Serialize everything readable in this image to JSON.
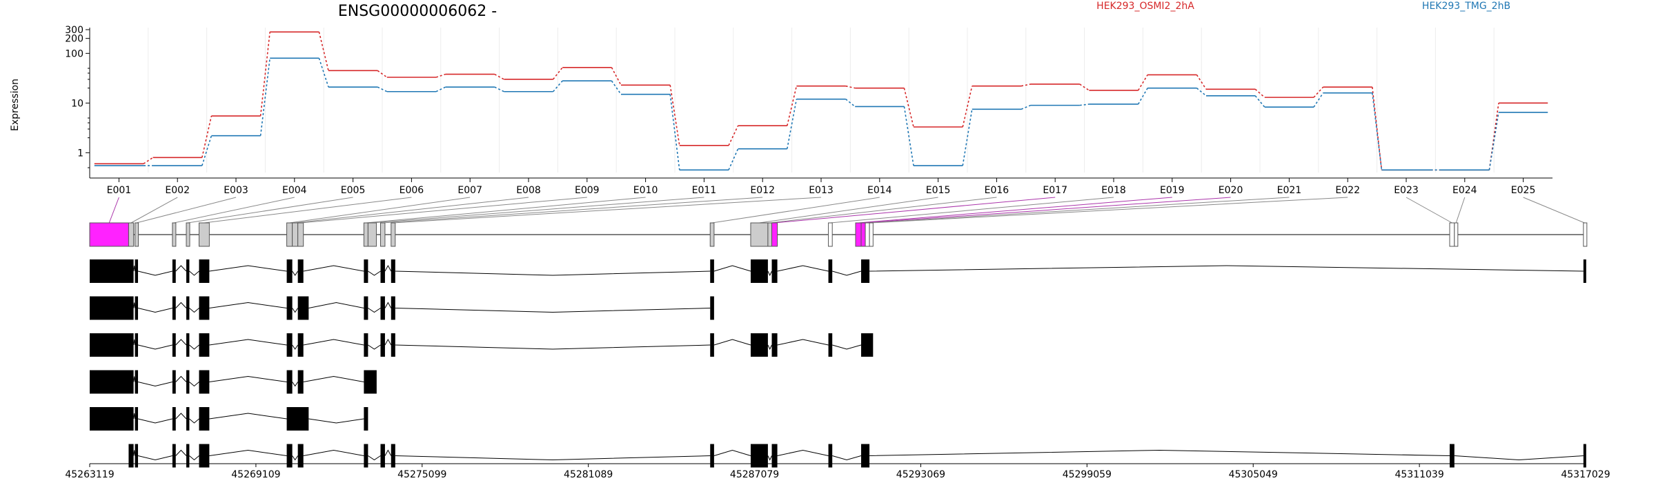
{
  "title": "ENSG00000006062 -",
  "ylabel": "Expression",
  "legend": [
    {
      "name": "HEK293_OSMI2_2hA",
      "color": "#d62728"
    },
    {
      "name": "HEK293_TMG_2hB",
      "color": "#1f77b4"
    }
  ],
  "chart_data": {
    "type": "line",
    "title": "ENSG00000006062 -",
    "ylabel": "Expression",
    "yscale": "log",
    "ylim": [
      0.4,
      330
    ],
    "yticks": [
      1,
      10,
      100,
      200,
      300
    ],
    "ytick_labels": [
      "1",
      "10",
      "100",
      "200",
      "300"
    ],
    "grid": "vertical",
    "categories": [
      "E001",
      "E002",
      "E003",
      "E004",
      "E005",
      "E006",
      "E007",
      "E008",
      "E009",
      "E010",
      "E011",
      "E012",
      "E013",
      "E014",
      "E015",
      "E016",
      "E017",
      "E018",
      "E019",
      "E020",
      "E021",
      "E022",
      "E023",
      "E024",
      "E025"
    ],
    "series": [
      {
        "name": "HEK293_OSMI2_2hA",
        "color": "#d62728",
        "values": [
          0.6,
          0.8,
          5.5,
          270,
          45,
          33,
          38,
          30,
          52,
          23,
          1.4,
          3.5,
          22,
          20,
          3.3,
          22,
          24,
          18,
          37,
          19,
          13,
          21,
          0.45,
          0.45,
          10
        ]
      },
      {
        "name": "HEK293_TMG_2hB",
        "color": "#1f77b4",
        "values": [
          0.55,
          0.55,
          2.2,
          80,
          21,
          17,
          21,
          17,
          28,
          15,
          0.45,
          1.2,
          12,
          8.5,
          0.55,
          7.5,
          9,
          9.5,
          20,
          14,
          8.3,
          16,
          0.45,
          0.45,
          6.5
        ]
      }
    ],
    "exons": [
      {
        "id": "E001",
        "start": 45263119,
        "end": 45264522,
        "color": "#ff22ff"
      },
      {
        "id": "E002",
        "start": 45264522,
        "end": 45264700,
        "color": "#cccccc"
      },
      {
        "id": "E003",
        "start": 45264750,
        "end": 45264860,
        "color": "#cccccc"
      },
      {
        "id": "E004",
        "start": 45266100,
        "end": 45266220,
        "color": "#cccccc"
      },
      {
        "id": "E005",
        "start": 45266600,
        "end": 45266710,
        "color": "#cccccc"
      },
      {
        "id": "E006",
        "start": 45267060,
        "end": 45267430,
        "color": "#cccccc"
      },
      {
        "id": "E007",
        "start": 45270220,
        "end": 45270420,
        "color": "#cccccc"
      },
      {
        "id": "E008",
        "start": 45270420,
        "end": 45270620,
        "color": "#cccccc"
      },
      {
        "id": "E009",
        "start": 45270620,
        "end": 45270820,
        "color": "#cccccc"
      },
      {
        "id": "E010",
        "start": 45273000,
        "end": 45273150,
        "color": "#cccccc"
      },
      {
        "id": "E011",
        "start": 45273150,
        "end": 45273450,
        "color": "#cccccc"
      },
      {
        "id": "E012",
        "start": 45273600,
        "end": 45273760,
        "color": "#cccccc"
      },
      {
        "id": "E013",
        "start": 45273980,
        "end": 45274130,
        "color": "#cccccc"
      },
      {
        "id": "E014",
        "start": 45285480,
        "end": 45285620,
        "color": "#cccccc"
      },
      {
        "id": "E015",
        "start": 45286940,
        "end": 45287560,
        "color": "#cccccc"
      },
      {
        "id": "E016",
        "start": 45287560,
        "end": 45287700,
        "color": "#cccccc"
      },
      {
        "id": "E017",
        "start": 45287700,
        "end": 45287900,
        "color": "#ff22ff"
      },
      {
        "id": "E018",
        "start": 45289740,
        "end": 45289880,
        "color": "#ffffff"
      },
      {
        "id": "E019",
        "start": 45290720,
        "end": 45290920,
        "color": "#ff22ff"
      },
      {
        "id": "E020",
        "start": 45290920,
        "end": 45291070,
        "color": "#ff22ff"
      },
      {
        "id": "E021",
        "start": 45291070,
        "end": 45291220,
        "color": "#ffffff"
      },
      {
        "id": "E022",
        "start": 45291220,
        "end": 45291350,
        "color": "#ffffff"
      },
      {
        "id": "E023",
        "start": 45312130,
        "end": 45312300,
        "color": "#ffffff"
      },
      {
        "id": "E024",
        "start": 45312300,
        "end": 45312420,
        "color": "#ffffff"
      },
      {
        "id": "E025",
        "start": 45316950,
        "end": 45317029,
        "color": "#ffffff"
      }
    ],
    "transcripts": [
      [
        [
          45263119,
          45264700
        ],
        [
          45264750,
          45264860
        ],
        [
          45266100,
          45266220
        ],
        [
          45266600,
          45266710
        ],
        [
          45267060,
          45267430
        ],
        [
          45270220,
          45270420
        ],
        [
          45270620,
          45270820
        ],
        [
          45273000,
          45273150
        ],
        [
          45273600,
          45273760
        ],
        [
          45273980,
          45274130
        ],
        [
          45285480,
          45285620
        ],
        [
          45286940,
          45287560
        ],
        [
          45287700,
          45287900
        ],
        [
          45289740,
          45289880
        ],
        [
          45290920,
          45291220
        ],
        [
          45316950,
          45317029
        ]
      ],
      [
        [
          45263119,
          45264700
        ],
        [
          45264750,
          45264860
        ],
        [
          45266100,
          45266220
        ],
        [
          45266600,
          45266710
        ],
        [
          45267060,
          45267430
        ],
        [
          45270220,
          45270420
        ],
        [
          45270620,
          45271010
        ],
        [
          45273000,
          45273150
        ],
        [
          45273600,
          45273760
        ],
        [
          45273980,
          45274130
        ],
        [
          45285480,
          45285620
        ]
      ],
      [
        [
          45263119,
          45264700
        ],
        [
          45264750,
          45264860
        ],
        [
          45266100,
          45266220
        ],
        [
          45266600,
          45266710
        ],
        [
          45267060,
          45267430
        ],
        [
          45270220,
          45270420
        ],
        [
          45270620,
          45270820
        ],
        [
          45273000,
          45273150
        ],
        [
          45273600,
          45273760
        ],
        [
          45273980,
          45274130
        ],
        [
          45285480,
          45285620
        ],
        [
          45286940,
          45287560
        ],
        [
          45287700,
          45287900
        ],
        [
          45289740,
          45289880
        ],
        [
          45290920,
          45291350
        ]
      ],
      [
        [
          45263119,
          45264700
        ],
        [
          45264750,
          45264860
        ],
        [
          45266100,
          45266220
        ],
        [
          45266600,
          45266710
        ],
        [
          45267060,
          45267430
        ],
        [
          45270220,
          45270420
        ],
        [
          45270620,
          45270820
        ],
        [
          45273000,
          45273460
        ]
      ],
      [
        [
          45263119,
          45264700
        ],
        [
          45264750,
          45264860
        ],
        [
          45266100,
          45266220
        ],
        [
          45266600,
          45266710
        ],
        [
          45267060,
          45267430
        ],
        [
          45270220,
          45271010
        ],
        [
          45273000,
          45273150
        ]
      ],
      [
        [
          45264522,
          45264700
        ],
        [
          45264750,
          45264860
        ],
        [
          45266100,
          45266220
        ],
        [
          45266600,
          45266710
        ],
        [
          45267060,
          45267430
        ],
        [
          45270220,
          45270420
        ],
        [
          45270620,
          45270820
        ],
        [
          45273000,
          45273150
        ],
        [
          45273600,
          45273760
        ],
        [
          45273980,
          45274130
        ],
        [
          45285480,
          45285620
        ],
        [
          45286940,
          45287560
        ],
        [
          45287700,
          45287900
        ],
        [
          45289740,
          45289880
        ],
        [
          45290920,
          45291220
        ],
        [
          45312130,
          45312300
        ],
        [
          45316950,
          45317029
        ]
      ]
    ],
    "genomic_ticks": [
      45263119,
      45269109,
      45275099,
      45281089,
      45287079,
      45293069,
      45299059,
      45305049,
      45311039,
      45317029
    ],
    "genomic_range": [
      45263119,
      45317029
    ]
  }
}
